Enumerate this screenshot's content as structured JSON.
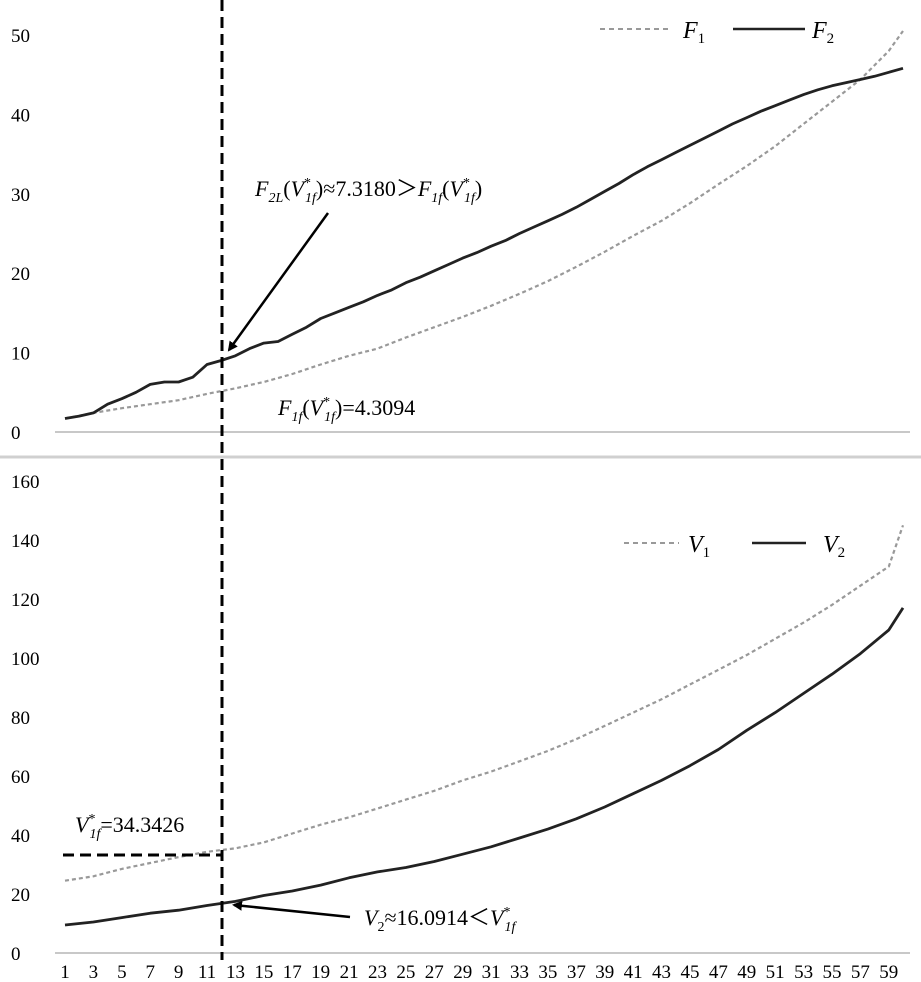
{
  "chart_data": [
    {
      "type": "line",
      "panel": "top",
      "ylim": [
        0,
        50
      ],
      "yticks": [
        "0",
        "10",
        "20",
        "30",
        "40",
        "50"
      ],
      "legend_placement": "top-right",
      "grid": false,
      "series": [
        {
          "name": "F1",
          "style": "dashed",
          "color": "#999999",
          "points": [
            [
              1,
              1.7
            ],
            [
              3,
              2.4
            ],
            [
              5,
              3.0
            ],
            [
              7,
              3.5
            ],
            [
              9,
              4.0
            ],
            [
              11,
              4.8
            ],
            [
              13,
              5.5
            ],
            [
              15,
              6.3
            ],
            [
              17,
              7.3
            ],
            [
              19,
              8.5
            ],
            [
              21,
              9.6
            ],
            [
              23,
              10.5
            ],
            [
              25,
              11.9
            ],
            [
              27,
              13.2
            ],
            [
              29,
              14.5
            ],
            [
              31,
              15.9
            ],
            [
              33,
              17.4
            ],
            [
              35,
              19.0
            ],
            [
              37,
              20.8
            ],
            [
              39,
              22.7
            ],
            [
              41,
              24.7
            ],
            [
              43,
              26.6
            ],
            [
              45,
              28.8
            ],
            [
              47,
              31.2
            ],
            [
              49,
              33.5
            ],
            [
              51,
              36.0
            ],
            [
              53,
              38.8
            ],
            [
              55,
              41.6
            ],
            [
              57,
              44.4
            ],
            [
              59,
              48.0
            ],
            [
              60,
              50.5
            ]
          ]
        },
        {
          "name": "F2",
          "style": "solid",
          "color": "#222222",
          "points": [
            [
              1,
              1.7
            ],
            [
              2,
              2.0
            ],
            [
              3,
              2.4
            ],
            [
              4,
              3.5
            ],
            [
              5,
              4.2
            ],
            [
              6,
              5.0
            ],
            [
              7,
              6.0
            ],
            [
              8,
              6.3
            ],
            [
              9,
              6.3
            ],
            [
              10,
              6.9
            ],
            [
              11,
              8.5
            ],
            [
              12,
              9.0
            ],
            [
              13,
              9.6
            ],
            [
              14,
              10.5
            ],
            [
              15,
              11.2
            ],
            [
              16,
              11.4
            ],
            [
              17,
              12.3
            ],
            [
              18,
              13.2
            ],
            [
              19,
              14.3
            ],
            [
              20,
              15.0
            ],
            [
              21,
              15.7
            ],
            [
              22,
              16.4
            ],
            [
              23,
              17.2
            ],
            [
              24,
              17.9
            ],
            [
              25,
              18.8
            ],
            [
              26,
              19.5
            ],
            [
              27,
              20.3
            ],
            [
              28,
              21.1
            ],
            [
              29,
              21.9
            ],
            [
              30,
              22.6
            ],
            [
              31,
              23.4
            ],
            [
              32,
              24.1
            ],
            [
              33,
              25.0
            ],
            [
              34,
              25.8
            ],
            [
              35,
              26.6
            ],
            [
              36,
              27.4
            ],
            [
              37,
              28.3
            ],
            [
              38,
              29.3
            ],
            [
              39,
              30.3
            ],
            [
              40,
              31.3
            ],
            [
              41,
              32.4
            ],
            [
              42,
              33.4
            ],
            [
              43,
              34.3
            ],
            [
              44,
              35.2
            ],
            [
              45,
              36.1
            ],
            [
              46,
              37.0
            ],
            [
              47,
              37.9
            ],
            [
              48,
              38.8
            ],
            [
              49,
              39.6
            ],
            [
              50,
              40.4
            ],
            [
              51,
              41.1
            ],
            [
              52,
              41.8
            ],
            [
              53,
              42.5
            ],
            [
              54,
              43.1
            ],
            [
              55,
              43.6
            ],
            [
              56,
              44.0
            ],
            [
              57,
              44.4
            ],
            [
              58,
              44.8
            ],
            [
              59,
              45.3
            ],
            [
              60,
              45.8
            ]
          ]
        }
      ],
      "legend": [
        {
          "base": "F",
          "sub": "1"
        },
        {
          "base": "F",
          "sub": "2"
        }
      ],
      "annotations": {
        "upper": {
          "base1": "F",
          "sub1": "2L",
          "arg1_base": "V",
          "arg1_sub": "1f",
          "arg1_sup": "*",
          "middle": ")≈7.3180＞",
          "base2": "F",
          "sub2": "1f",
          "arg2_base": "V",
          "arg2_sub": "1f",
          "arg2_sup": "*"
        },
        "lower": {
          "base": "F",
          "sub": "1f",
          "arg_base": "V",
          "arg_sub": "1f",
          "arg_sup": "*",
          "value": ")=4.3094"
        }
      }
    },
    {
      "type": "line",
      "panel": "bottom",
      "ylim": [
        0,
        160
      ],
      "yticks": [
        "0",
        "20",
        "40",
        "60",
        "80",
        "100",
        "120",
        "140",
        "160"
      ],
      "xticks": [
        "1",
        "3",
        "5",
        "7",
        "9",
        "11",
        "13",
        "15",
        "17",
        "19",
        "21",
        "23",
        "25",
        "27",
        "29",
        "31",
        "33",
        "35",
        "37",
        "39",
        "41",
        "43",
        "45",
        "47",
        "49",
        "51",
        "53",
        "55",
        "57",
        "59"
      ],
      "legend_placement": "top-right",
      "grid": false,
      "series": [
        {
          "name": "V1",
          "style": "dashed",
          "color": "#999999",
          "points": [
            [
              1,
              24.5
            ],
            [
              3,
              26.0
            ],
            [
              5,
              28.5
            ],
            [
              7,
              30.5
            ],
            [
              9,
              32.5
            ],
            [
              11,
              34.3
            ],
            [
              13,
              35.5
            ],
            [
              15,
              37.5
            ],
            [
              17,
              40.5
            ],
            [
              19,
              43.5
            ],
            [
              21,
              46.0
            ],
            [
              23,
              49.0
            ],
            [
              25,
              52.0
            ],
            [
              27,
              55.0
            ],
            [
              29,
              58.5
            ],
            [
              31,
              61.5
            ],
            [
              33,
              65.0
            ],
            [
              35,
              68.5
            ],
            [
              37,
              72.5
            ],
            [
              39,
              77.0
            ],
            [
              41,
              81.5
            ],
            [
              43,
              86.0
            ],
            [
              45,
              91.0
            ],
            [
              47,
              96.0
            ],
            [
              49,
              101.0
            ],
            [
              51,
              106.5
            ],
            [
              53,
              112.0
            ],
            [
              55,
              118.0
            ],
            [
              57,
              124.5
            ],
            [
              59,
              131.0
            ],
            [
              60,
              145.0
            ]
          ]
        },
        {
          "name": "V2",
          "style": "solid",
          "color": "#222222",
          "points": [
            [
              1,
              9.5
            ],
            [
              3,
              10.5
            ],
            [
              5,
              12.0
            ],
            [
              7,
              13.5
            ],
            [
              9,
              14.5
            ],
            [
              11,
              16.1
            ],
            [
              13,
              17.5
            ],
            [
              15,
              19.5
            ],
            [
              17,
              21.0
            ],
            [
              19,
              23.0
            ],
            [
              21,
              25.5
            ],
            [
              23,
              27.5
            ],
            [
              25,
              29.0
            ],
            [
              27,
              31.0
            ],
            [
              29,
              33.5
            ],
            [
              31,
              36.0
            ],
            [
              33,
              39.0
            ],
            [
              35,
              42.0
            ],
            [
              37,
              45.5
            ],
            [
              39,
              49.5
            ],
            [
              41,
              54.0
            ],
            [
              43,
              58.5
            ],
            [
              45,
              63.5
            ],
            [
              47,
              69.0
            ],
            [
              49,
              75.5
            ],
            [
              51,
              81.5
            ],
            [
              53,
              88.0
            ],
            [
              55,
              94.5
            ],
            [
              57,
              101.5
            ],
            [
              59,
              109.5
            ],
            [
              60,
              117.0
            ]
          ]
        }
      ],
      "legend": [
        {
          "base": "V",
          "sub": "1"
        },
        {
          "base": "V",
          "sub": "2"
        }
      ],
      "annotations": {
        "left": {
          "base": "V",
          "sub": "1f",
          "sup": "*",
          "value": "=34.3426"
        },
        "right": {
          "base": "V",
          "sub": "2",
          "middle": "≈16.0914＜",
          "base2": "V",
          "sub2": "1f",
          "sup2": "*"
        }
      }
    }
  ]
}
